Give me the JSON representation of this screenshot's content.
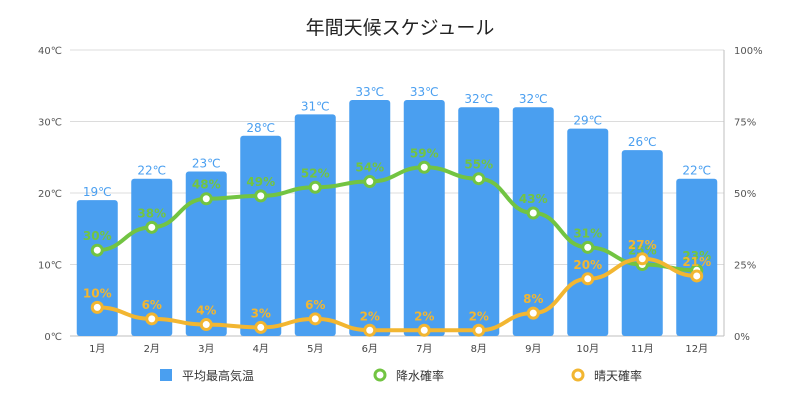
{
  "chart_data": {
    "type": "bar",
    "title": "年間天候スケジュール",
    "categories": [
      "1月",
      "2月",
      "3月",
      "4月",
      "5月",
      "6月",
      "7月",
      "8月",
      "9月",
      "10月",
      "11月",
      "12月"
    ],
    "y_left": {
      "ticks": [
        "0℃",
        "10℃",
        "20℃",
        "30℃",
        "40℃"
      ],
      "range": [
        0,
        40
      ],
      "unit": "℃"
    },
    "y_right": {
      "ticks": [
        "0%",
        "25%",
        "50%",
        "75%",
        "100%"
      ],
      "range": [
        0,
        100
      ],
      "unit": "%"
    },
    "grid": true,
    "legend_position": "bottom",
    "series": [
      {
        "name": "平均最高気温",
        "type": "bar",
        "axis": "left",
        "color": "#4a9ff0",
        "values": [
          19,
          22,
          23,
          28,
          31,
          33,
          33,
          32,
          32,
          29,
          26,
          22
        ],
        "labels": [
          "19℃",
          "22℃",
          "23℃",
          "28℃",
          "31℃",
          "33℃",
          "33℃",
          "32℃",
          "32℃",
          "29℃",
          "26℃",
          "22℃"
        ]
      },
      {
        "name": "降水確率",
        "type": "line",
        "axis": "right",
        "color": "#72c442",
        "values": [
          30,
          38,
          48,
          49,
          52,
          54,
          59,
          55,
          43,
          31,
          25,
          23
        ],
        "labels": [
          "30%",
          "38%",
          "48%",
          "49%",
          "52%",
          "54%",
          "59%",
          "55%",
          "43%",
          "31%",
          "25%",
          "23%"
        ]
      },
      {
        "name": "晴天確率",
        "type": "line",
        "axis": "right",
        "color": "#f2b631",
        "values": [
          10,
          6,
          4,
          3,
          6,
          2,
          2,
          2,
          8,
          20,
          27,
          21
        ],
        "labels": [
          "10%",
          "6%",
          "4%",
          "3%",
          "6%",
          "2%",
          "2%",
          "2%",
          "8%",
          "20%",
          "27%",
          "21%"
        ]
      }
    ]
  }
}
